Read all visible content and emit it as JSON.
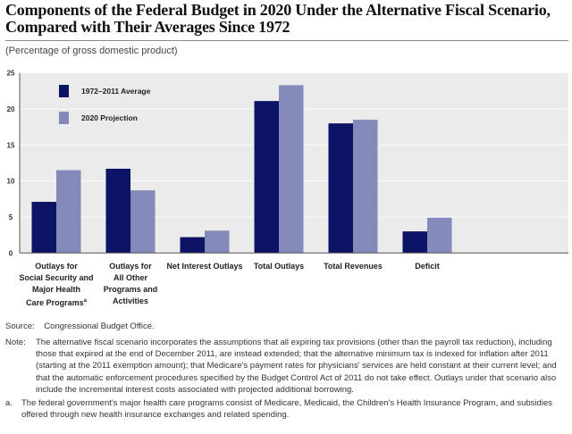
{
  "chart_data": {
    "type": "bar",
    "title": "Components of the Federal Budget in 2020 Under the Alternative Fiscal Scenario, Compared with Their Averages Since 1972",
    "title_lines": [
      "Components of the Federal Budget in 2020 Under the Alternative Fiscal Scenario,",
      "Compared with Their Averages Since 1972"
    ],
    "ylabel": "(Percentage of gross domestic product)",
    "ylim": [
      0,
      25
    ],
    "yticks": [
      0,
      5,
      10,
      15,
      20,
      25
    ],
    "grid": true,
    "legend_position": "top-left",
    "categories": [
      [
        "Outlays for",
        "Social Security and",
        "Major Health",
        "Care Programs"
      ],
      [
        "Outlays for",
        "All Other",
        "Programs and",
        "Activities"
      ],
      [
        "Net Interest Outlays"
      ],
      [
        "Total Outlays"
      ],
      [
        "Total Revenues"
      ],
      [
        "Deficit"
      ]
    ],
    "category_superscript": "a",
    "series": [
      {
        "name": "1972–2011 Average",
        "color": "#0d1466",
        "values": [
          7.1,
          11.7,
          2.2,
          21.1,
          18.0,
          3.0
        ]
      },
      {
        "name": "2020 Projection",
        "color": "#8389b8",
        "values": [
          11.5,
          8.7,
          3.1,
          23.3,
          18.5,
          4.9
        ]
      }
    ]
  },
  "source": {
    "label": "Source:",
    "text": "Congressional Budget Office."
  },
  "note": {
    "label": "Note:",
    "text": "The alternative fiscal scenario incorporates the assumptions that all expiring tax provisions (other than the payroll tax reduction), including those that expired at the end of December 2011, are instead extended; that the alternative minimum tax is indexed for inflation after 2011 (starting at the 2011 exemption amount); that Medicare's payment rates for physicians' services are held constant at their current level; and that the automatic enforcement procedures specified by the Budget Control Act of 2011 do not take effect. Outlays under that scenario also include the incremental interest costs associated with projected additional borrowing."
  },
  "footnote": {
    "label": "a.",
    "text": "The federal government's major health care programs consist of Medicare, Medicaid, the Children's Health Insurance Program, and subsidies offered through new health insurance exchanges and related spending."
  }
}
